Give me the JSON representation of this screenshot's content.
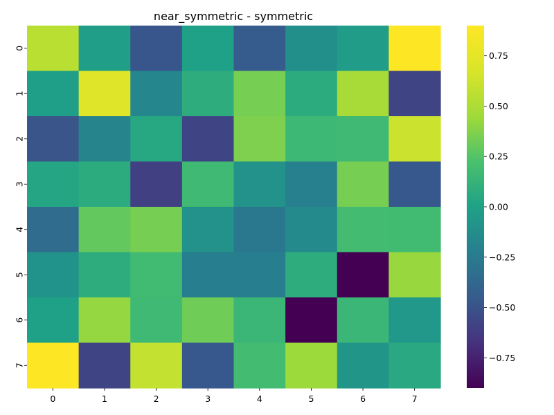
{
  "chart_data": {
    "type": "heatmap",
    "title": "near_symmetric - symmetric",
    "xlabel": "",
    "ylabel": "",
    "x_categories": [
      "0",
      "1",
      "2",
      "3",
      "4",
      "5",
      "6",
      "7"
    ],
    "y_categories": [
      "0",
      "1",
      "2",
      "3",
      "4",
      "5",
      "6",
      "7"
    ],
    "values": [
      [
        0.55,
        -0.02,
        -0.48,
        0.0,
        -0.45,
        -0.12,
        -0.03,
        0.9
      ],
      [
        -0.01,
        0.71,
        -0.18,
        0.08,
        0.34,
        0.07,
        0.48,
        -0.58
      ],
      [
        -0.49,
        -0.19,
        0.04,
        -0.58,
        0.36,
        0.16,
        0.17,
        0.62
      ],
      [
        0.03,
        0.07,
        -0.6,
        0.17,
        -0.1,
        -0.22,
        0.34,
        -0.47
      ],
      [
        -0.35,
        0.29,
        0.34,
        -0.1,
        -0.27,
        -0.15,
        0.19,
        0.18
      ],
      [
        -0.09,
        0.08,
        0.18,
        -0.23,
        -0.23,
        0.08,
        -0.9,
        0.43
      ],
      [
        0.0,
        0.42,
        0.17,
        0.32,
        0.15,
        -0.9,
        0.15,
        -0.06
      ],
      [
        0.9,
        -0.58,
        0.59,
        -0.47,
        0.19,
        0.44,
        -0.08,
        0.05
      ]
    ],
    "vmin": -0.9,
    "vmax": 0.9,
    "colormap": "viridis",
    "colorbar": {
      "ticks": [
        0.75,
        0.5,
        0.25,
        0.0,
        -0.25,
        -0.5,
        -0.75
      ],
      "tick_labels": [
        "0.75",
        "0.50",
        "0.25",
        "0.00",
        "−0.25",
        "−0.50",
        "−0.75"
      ]
    },
    "grid": false,
    "legend": "colorbar-right"
  }
}
